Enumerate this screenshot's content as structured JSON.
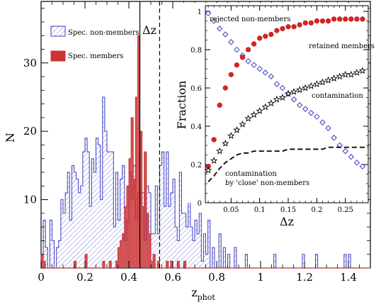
{
  "chart_data": [
    {
      "type": "histogram",
      "xlabel_main": "z",
      "xlabel_sub": "phot",
      "ylabel": "N",
      "xlim": [
        0,
        1.5
      ],
      "ylim": [
        0,
        39
      ],
      "xticks": [
        0,
        0.2,
        0.4,
        0.6,
        0.8,
        1,
        1.2,
        1.4
      ],
      "yticks": [
        10,
        20,
        30
      ],
      "bin_width": 0.01,
      "bin_start": 0.0,
      "series": [
        {
          "name": "Spec. non-members",
          "color": "#3b3bc4",
          "style": "hatched",
          "counts": [
            2,
            7,
            3,
            0,
            7,
            4,
            0,
            3,
            4,
            10,
            8,
            11,
            14,
            7,
            15,
            14,
            13,
            11,
            12,
            17,
            19,
            17,
            9,
            16,
            14,
            19,
            18,
            10,
            25,
            20,
            17,
            17,
            17,
            6,
            14,
            7,
            13,
            15,
            4,
            7,
            14,
            10,
            15,
            7,
            11,
            11,
            11,
            4,
            12,
            11,
            5,
            5,
            12,
            5,
            15,
            17,
            9,
            17,
            9,
            11,
            13,
            6,
            4,
            14,
            8,
            8,
            6,
            12,
            6,
            4,
            7,
            5,
            8,
            1,
            5,
            2,
            7,
            0,
            3,
            0,
            0,
            5,
            0,
            3,
            0,
            2,
            0,
            0,
            3,
            0,
            0,
            0,
            0,
            2,
            0,
            0,
            0,
            0,
            0,
            0,
            0,
            0,
            0,
            0,
            0,
            0,
            2,
            0,
            0,
            0,
            0,
            0,
            0,
            0,
            0,
            0,
            0,
            0,
            0,
            2,
            0,
            0,
            0,
            0,
            0,
            2,
            0,
            0,
            0,
            0,
            0,
            0,
            0,
            0,
            0,
            0,
            0,
            0,
            2,
            0,
            2,
            0,
            0,
            0,
            0,
            0,
            0,
            0,
            0,
            0
          ]
        },
        {
          "name": "Spec. members",
          "color": "#cc3333",
          "style": "filled",
          "counts": [
            2,
            1,
            0,
            0,
            0,
            0,
            0,
            0,
            0,
            0,
            0,
            0,
            0,
            0,
            0,
            1,
            0,
            0,
            0,
            0,
            2,
            0,
            0,
            0,
            0,
            0,
            0,
            0,
            1,
            0,
            0,
            1,
            0,
            0,
            1,
            3,
            4,
            5,
            9,
            12,
            16,
            22,
            13,
            25,
            34,
            20,
            9,
            17,
            8,
            5,
            1,
            2,
            0,
            1,
            0,
            0,
            0,
            1,
            0,
            1,
            0,
            0,
            1,
            0,
            0,
            1,
            0,
            0,
            0,
            0,
            0,
            0,
            0,
            0,
            0,
            0,
            0,
            0,
            0,
            0,
            0,
            0,
            0,
            0,
            0,
            0,
            0,
            0,
            0,
            0,
            0,
            0,
            0,
            0,
            0,
            0,
            0,
            0,
            0,
            0,
            0,
            0,
            0,
            0,
            0,
            0,
            0,
            0,
            0,
            0,
            0,
            0,
            0,
            0,
            0,
            0,
            0,
            0,
            0,
            0,
            0,
            0,
            0,
            0,
            0,
            0,
            0,
            0,
            0,
            0,
            0,
            0,
            0,
            0,
            0,
            0,
            0,
            0,
            0,
            0,
            0,
            0,
            0,
            0,
            0,
            0,
            0,
            0,
            0,
            0
          ]
        }
      ],
      "vlines": [
        {
          "x": 0.45,
          "style": "solid"
        },
        {
          "x": 0.54,
          "style": "dashed"
        }
      ],
      "annotation": "Δz"
    },
    {
      "type": "scatter",
      "xlabel": "Δz",
      "ylabel": "Fraction",
      "xlim": [
        0.005,
        0.29
      ],
      "ylim": [
        0,
        1.03
      ],
      "xticks": [
        0.05,
        0.1,
        0.15,
        0.2,
        0.25
      ],
      "xtick_labels": [
        "0.05",
        "0.1",
        "0.15",
        "0.2",
        "0.25"
      ],
      "yticks": [
        0,
        0.2,
        0.4,
        0.6,
        0.8,
        1
      ],
      "series": [
        {
          "name": "rejected non-members",
          "marker": "diamond",
          "color": "#3b3bc4",
          "x": [
            0.01,
            0.02,
            0.03,
            0.04,
            0.05,
            0.06,
            0.07,
            0.08,
            0.09,
            0.1,
            0.11,
            0.12,
            0.13,
            0.14,
            0.15,
            0.16,
            0.17,
            0.18,
            0.19,
            0.2,
            0.21,
            0.22,
            0.23,
            0.24,
            0.25,
            0.26,
            0.27,
            0.28
          ],
          "y": [
            0.99,
            0.95,
            0.91,
            0.88,
            0.84,
            0.8,
            0.77,
            0.74,
            0.72,
            0.7,
            0.68,
            0.66,
            0.62,
            0.6,
            0.57,
            0.54,
            0.51,
            0.49,
            0.47,
            0.45,
            0.42,
            0.39,
            0.34,
            0.3,
            0.27,
            0.24,
            0.21,
            0.19
          ]
        },
        {
          "name": "retained members",
          "marker": "circle",
          "color": "#dd2222",
          "x": [
            0.01,
            0.02,
            0.03,
            0.04,
            0.05,
            0.06,
            0.07,
            0.08,
            0.09,
            0.1,
            0.11,
            0.12,
            0.13,
            0.14,
            0.15,
            0.16,
            0.17,
            0.18,
            0.19,
            0.2,
            0.21,
            0.22,
            0.23,
            0.24,
            0.25,
            0.26,
            0.27,
            0.28
          ],
          "y": [
            0.19,
            0.33,
            0.51,
            0.6,
            0.67,
            0.72,
            0.76,
            0.8,
            0.83,
            0.86,
            0.87,
            0.88,
            0.9,
            0.91,
            0.92,
            0.92,
            0.93,
            0.94,
            0.94,
            0.95,
            0.95,
            0.95,
            0.96,
            0.96,
            0.96,
            0.96,
            0.96,
            0.96
          ]
        },
        {
          "name": "contamination",
          "marker": "star",
          "color": "#000000",
          "x": [
            0.01,
            0.02,
            0.03,
            0.04,
            0.05,
            0.06,
            0.07,
            0.08,
            0.09,
            0.1,
            0.11,
            0.12,
            0.13,
            0.14,
            0.15,
            0.16,
            0.17,
            0.18,
            0.19,
            0.2,
            0.21,
            0.22,
            0.23,
            0.24,
            0.25,
            0.26,
            0.27,
            0.28
          ],
          "y": [
            0.17,
            0.22,
            0.27,
            0.31,
            0.35,
            0.38,
            0.41,
            0.44,
            0.46,
            0.48,
            0.5,
            0.52,
            0.54,
            0.55,
            0.57,
            0.58,
            0.59,
            0.6,
            0.61,
            0.62,
            0.63,
            0.64,
            0.65,
            0.66,
            0.67,
            0.67,
            0.68,
            0.69
          ]
        },
        {
          "name": "contamination by 'close' non-members",
          "marker": "dashed-line",
          "color": "#000000",
          "x": [
            0.01,
            0.02,
            0.03,
            0.04,
            0.05,
            0.06,
            0.07,
            0.08,
            0.09,
            0.1,
            0.11,
            0.12,
            0.13,
            0.14,
            0.15,
            0.16,
            0.17,
            0.18,
            0.19,
            0.2,
            0.21,
            0.22,
            0.23,
            0.24,
            0.25,
            0.26,
            0.27,
            0.28,
            0.29
          ],
          "y": [
            0.11,
            0.14,
            0.18,
            0.21,
            0.23,
            0.25,
            0.26,
            0.26,
            0.27,
            0.27,
            0.27,
            0.27,
            0.27,
            0.27,
            0.28,
            0.28,
            0.28,
            0.28,
            0.28,
            0.28,
            0.28,
            0.29,
            0.29,
            0.29,
            0.29,
            0.29,
            0.29,
            0.29,
            0.29
          ]
        }
      ],
      "annotations": {
        "rejected": "rejected non-members",
        "retained": "retained members",
        "contamination": "contamination",
        "close_line1": "contamination",
        "close_line2": "by 'close' non-members"
      }
    }
  ]
}
